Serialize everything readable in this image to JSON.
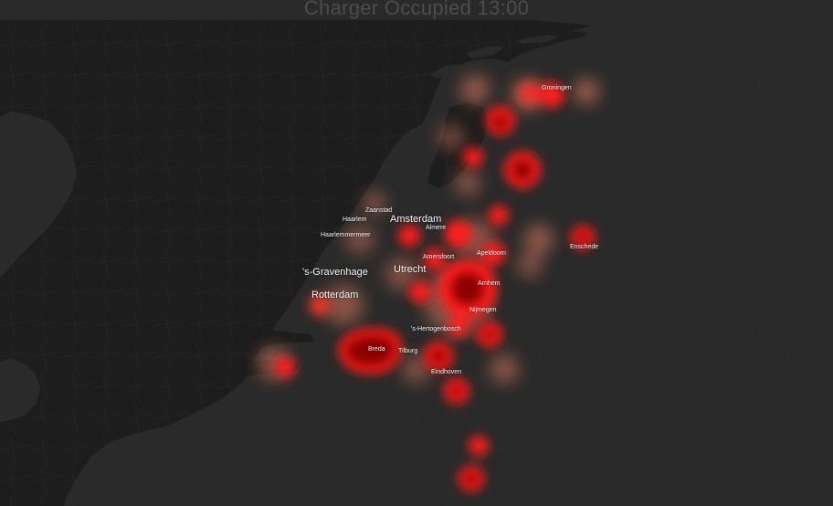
{
  "title": "Charger Occupied 13:00",
  "colors": {
    "water": "#1d1d1d",
    "land": "#2a2a2a",
    "heat_low": "#ff8a6e",
    "heat_mid": "#ff1c1c",
    "heat_high": "#8a0000"
  },
  "cities": [
    {
      "id": "groningen",
      "name": "Groningen",
      "rank": "minor"
    },
    {
      "id": "zaanstad",
      "name": "Zaanstad",
      "rank": "minor"
    },
    {
      "id": "haarlem",
      "name": "Haarlem",
      "rank": "minor"
    },
    {
      "id": "amsterdam",
      "name": "Amsterdam",
      "rank": "major"
    },
    {
      "id": "almere",
      "name": "Almere",
      "rank": "minor"
    },
    {
      "id": "haarlemmermeer",
      "name": "Haarlemmermeer",
      "rank": "minor"
    },
    {
      "id": "enschede",
      "name": "Enschede",
      "rank": "minor"
    },
    {
      "id": "amersfoort",
      "name": "Amersfoort",
      "rank": "minor"
    },
    {
      "id": "apeldoorn",
      "name": "Apeldoorn",
      "rank": "minor"
    },
    {
      "id": "s-gravenhage",
      "name": "'s-Gravenhage",
      "rank": "major"
    },
    {
      "id": "utrecht",
      "name": "Utrecht",
      "rank": "major"
    },
    {
      "id": "arnhem",
      "name": "Arnhem",
      "rank": "minor"
    },
    {
      "id": "rotterdam",
      "name": "Rotterdam",
      "rank": "major"
    },
    {
      "id": "nijmegen",
      "name": "Nijmegen",
      "rank": "minor"
    },
    {
      "id": "s-hertogenbosch",
      "name": "'s-Hertogenbosch",
      "rank": "minor"
    },
    {
      "id": "breda",
      "name": "Breda",
      "rank": "minor"
    },
    {
      "id": "tilburg",
      "name": "Tilburg",
      "rank": "minor"
    },
    {
      "id": "eindhoven",
      "name": "Eindhoven",
      "rank": "minor"
    }
  ],
  "heat_intensity": {
    "groningen": 0.75,
    "enschede": 0.9,
    "amsterdam": 0.75,
    "utrecht": 0.95,
    "arnhem": 0.95,
    "rotterdam": 0.6,
    "breda": 1.0,
    "eindhoven": 0.95,
    "nijmegen": 0.9
  }
}
